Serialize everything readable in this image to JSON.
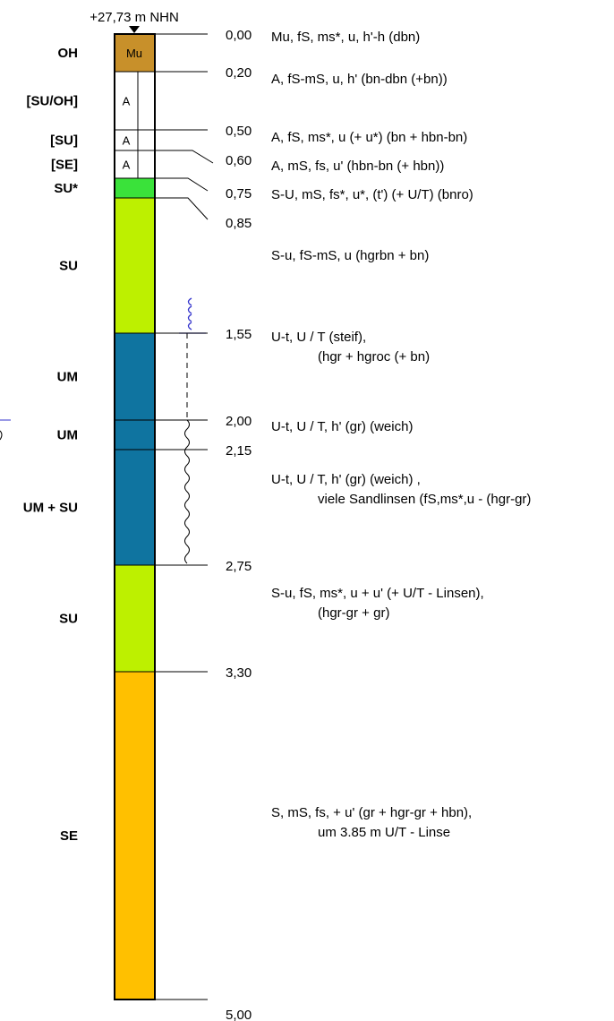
{
  "elevation_label": "+27,73 m NHN",
  "column": {
    "top_depth": 0,
    "bottom_depth": 5.0
  },
  "layers": [
    {
      "from": 0.0,
      "to": 0.2,
      "color": "#c8902a",
      "soil_class": "OH",
      "fill_label": "Mu",
      "description": [
        "Mu,   fS, ms*, u, h'-h (dbn)"
      ]
    },
    {
      "from": 0.2,
      "to": 0.5,
      "color": "#ffffff",
      "soil_class": "[SU/OH]",
      "fill_label": "A",
      "description": [
        "A,   fS-mS, u, h' (bn-dbn (+bn))"
      ]
    },
    {
      "from": 0.5,
      "to": 0.6,
      "color": "#ffffff",
      "soil_class": "[SU]",
      "fill_label": "A",
      "description": [
        "A,   fS, ms*, u (+ u*) (bn + hbn-bn)"
      ]
    },
    {
      "from": 0.6,
      "to": 0.75,
      "color": "#ffffff",
      "soil_class": "[SE]",
      "fill_label": "A",
      "description": [
        "A,   mS, fs, u' (hbn-bn (+ hbn))"
      ]
    },
    {
      "from": 0.75,
      "to": 0.85,
      "color": "#3ae23a",
      "soil_class": "SU*",
      "fill_label": "",
      "description": [
        "S-U,   mS, fs*, u*, (t') (+ U/T) (bnro)"
      ]
    },
    {
      "from": 0.85,
      "to": 1.55,
      "color": "#bdf000",
      "soil_class": "SU",
      "fill_label": "",
      "description": [
        "S-u,   fS-mS, u (hgrbn + bn)"
      ]
    },
    {
      "from": 1.55,
      "to": 2.0,
      "color": "#0f74a0",
      "soil_class": "UM",
      "fill_label": "",
      "description": [
        "U-t,   U / T (steif),",
        "(hgr + hgroc (+ bn)"
      ]
    },
    {
      "from": 2.0,
      "to": 2.15,
      "color": "#0f74a0",
      "soil_class": "UM",
      "fill_label": "",
      "description": [
        "U-t,   U / T, h' (gr) (weich)"
      ]
    },
    {
      "from": 2.15,
      "to": 2.75,
      "color": "#0f74a0",
      "soil_class": "UM + SU",
      "fill_label": "",
      "description": [
        "U-t,   U / T, h' (gr) (weich) ,",
        "viele Sandlinsen (fS,ms*,u - (hgr-gr)"
      ]
    },
    {
      "from": 2.75,
      "to": 3.3,
      "color": "#bdf000",
      "soil_class": "SU",
      "fill_label": "",
      "description": [
        "S-u,   fS, ms*, u + u' (+ U/T - Linsen),",
        "(hgr-gr + gr)"
      ]
    },
    {
      "from": 3.3,
      "to": 5.0,
      "color": "#ffc000",
      "soil_class": "SE",
      "fill_label": "",
      "description": [
        "S,   mS, fs, + u' (gr + hgr-gr + hbn),",
        "um 3.85 m U/T - Linse"
      ]
    }
  ],
  "depth_labels": [
    {
      "depth": 0.0,
      "text": "0,00"
    },
    {
      "depth": 0.2,
      "text": "0,20"
    },
    {
      "depth": 0.5,
      "text": "0,50"
    },
    {
      "depth": 0.6,
      "text": "0,60"
    },
    {
      "depth": 0.75,
      "text": "0,75"
    },
    {
      "depth": 0.85,
      "text": "0,85"
    },
    {
      "depth": 1.55,
      "text": "1,55"
    },
    {
      "depth": 2.0,
      "text": "2,00"
    },
    {
      "depth": 2.15,
      "text": "2,15"
    },
    {
      "depth": 2.75,
      "text": "2,75"
    },
    {
      "depth": 3.3,
      "text": "3,30"
    },
    {
      "depth": 5.0,
      "text": "5,00"
    }
  ],
  "consistency": [
    {
      "from": 1.55,
      "to": 2.0,
      "type": "dashed"
    },
    {
      "from": 2.0,
      "to": 2.75,
      "type": "wavy"
    }
  ],
  "water_symbol_depth": 1.55,
  "colors": {
    "symbol": "#3333cc",
    "line": "#000000"
  }
}
